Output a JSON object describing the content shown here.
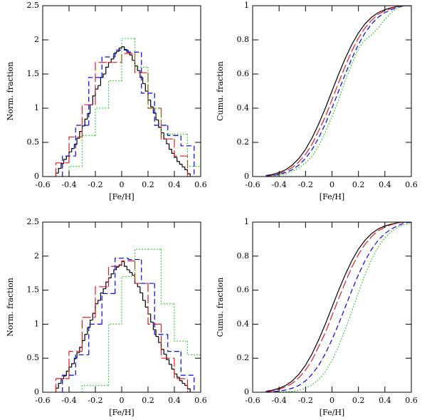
{
  "chart_data": [
    {
      "type": "histogram",
      "xlabel": "[Fe/H]",
      "ylabel": "Norm. fraction",
      "xlim": [
        -0.6,
        0.6
      ],
      "xticks": [
        -0.6,
        -0.4,
        -0.2,
        0,
        0.2,
        0.4,
        0.6
      ],
      "ylim": [
        0,
        2.5
      ],
      "yticks": [
        0,
        0.5,
        1,
        1.5,
        2,
        2.5
      ],
      "series": [
        {
          "color": "#000000",
          "style": "solid",
          "bins": [
            -0.5,
            -0.48,
            -0.46,
            -0.44,
            -0.42,
            -0.4,
            -0.38,
            -0.36,
            -0.34,
            -0.32,
            -0.3,
            -0.28,
            -0.26,
            -0.24,
            -0.22,
            -0.2,
            -0.18,
            -0.16,
            -0.14,
            -0.12,
            -0.1,
            -0.08,
            -0.06,
            -0.04,
            -0.02,
            0,
            0.02,
            0.04,
            0.06,
            0.08,
            0.1,
            0.12,
            0.14,
            0.16,
            0.18,
            0.2,
            0.22,
            0.24,
            0.26,
            0.28,
            0.3,
            0.32,
            0.34,
            0.36,
            0.38,
            0.4,
            0.42,
            0.44,
            0.46,
            0.48,
            0.5,
            0.52
          ],
          "values": [
            0.05,
            0.12,
            0.19,
            0.25,
            0.3,
            0.36,
            0.41,
            0.47,
            0.56,
            0.66,
            0.74,
            0.84,
            0.92,
            1.05,
            1.18,
            1.28,
            1.33,
            1.45,
            1.5,
            1.6,
            1.67,
            1.72,
            1.8,
            1.83,
            1.88,
            1.9,
            1.86,
            1.82,
            1.78,
            1.7,
            1.62,
            1.55,
            1.45,
            1.36,
            1.25,
            1.12,
            1.02,
            0.93,
            0.83,
            0.72,
            0.64,
            0.55,
            0.48,
            0.4,
            0.34,
            0.28,
            0.22,
            0.18,
            0.14,
            0.1,
            0.04
          ]
        },
        {
          "color": "#e41a1c",
          "style": "longdash",
          "bins": [
            -0.5,
            -0.4,
            -0.3,
            -0.2,
            -0.1,
            0,
            0.1,
            0.2,
            0.3,
            0.4,
            0.5
          ],
          "values": [
            0.2,
            0.58,
            1.05,
            1.67,
            1.67,
            1.8,
            1.52,
            1.0,
            0.55,
            0.3
          ]
        },
        {
          "color": "#0000ff",
          "style": "dashed",
          "bins": [
            -0.45,
            -0.35,
            -0.25,
            -0.15,
            -0.05,
            0.05,
            0.15,
            0.25,
            0.35,
            0.45,
            0.55
          ],
          "values": [
            0.3,
            0.75,
            1.45,
            1.75,
            1.85,
            1.82,
            1.22,
            0.75,
            0.6,
            0.45
          ]
        },
        {
          "color": "#00cc00",
          "style": "dotted",
          "bins": [
            -0.4,
            -0.3,
            -0.2,
            -0.1,
            0,
            0.1,
            0.2,
            0.3,
            0.4,
            0.5,
            0.6
          ],
          "values": [
            0.15,
            0.6,
            1.0,
            1.4,
            2.02,
            1.6,
            1.0,
            0.62,
            0.62,
            0.15
          ]
        }
      ]
    },
    {
      "type": "line",
      "xlabel": "[Fe/H]",
      "ylabel": "Cumu. fraction",
      "xlim": [
        -0.6,
        0.6
      ],
      "xticks": [
        -0.6,
        -0.4,
        -0.2,
        0,
        0.2,
        0.4,
        0.6
      ],
      "ylim": [
        0,
        1
      ],
      "yticks": [
        0,
        0.2,
        0.4,
        0.6,
        0.8,
        1
      ],
      "x": [
        -0.5,
        -0.45,
        -0.4,
        -0.35,
        -0.3,
        -0.25,
        -0.2,
        -0.15,
        -0.1,
        -0.05,
        0,
        0.05,
        0.1,
        0.15,
        0.2,
        0.25,
        0.3,
        0.35,
        0.4,
        0.45,
        0.5,
        0.55,
        0.6
      ],
      "series": [
        {
          "color": "#000000",
          "style": "solid",
          "values": [
            0.006,
            0.012,
            0.023,
            0.04,
            0.067,
            0.106,
            0.159,
            0.227,
            0.309,
            0.401,
            0.5,
            0.599,
            0.691,
            0.773,
            0.841,
            0.894,
            0.933,
            0.96,
            0.977,
            0.988,
            0.997,
            1,
            1
          ]
        },
        {
          "color": "#e41a1c",
          "style": "longdash",
          "values": [
            0.003,
            0.008,
            0.017,
            0.031,
            0.053,
            0.086,
            0.13,
            0.19,
            0.27,
            0.35,
            0.45,
            0.55,
            0.645,
            0.735,
            0.81,
            0.87,
            0.915,
            0.95,
            0.97,
            0.985,
            0.995,
            1,
            1
          ]
        },
        {
          "color": "#0000ff",
          "style": "dashed",
          "values": [
            0.002,
            0.006,
            0.012,
            0.023,
            0.04,
            0.067,
            0.106,
            0.159,
            0.227,
            0.309,
            0.401,
            0.5,
            0.599,
            0.691,
            0.773,
            0.841,
            0.894,
            0.933,
            0.96,
            0.977,
            0.99,
            1,
            1
          ]
        },
        {
          "color": "#00cc00",
          "style": "dotted",
          "values": [
            0,
            0.003,
            0.008,
            0.015,
            0.03,
            0.05,
            0.08,
            0.12,
            0.18,
            0.26,
            0.35,
            0.45,
            0.56,
            0.66,
            0.75,
            0.8,
            0.83,
            0.87,
            0.92,
            0.96,
            0.99,
            1,
            1
          ]
        }
      ]
    },
    {
      "type": "histogram",
      "xlabel": "[Fe/H]",
      "ylabel": "Norm. fraction",
      "xlim": [
        -0.6,
        0.6
      ],
      "xticks": [
        -0.6,
        -0.4,
        -0.2,
        0,
        0.2,
        0.4,
        0.6
      ],
      "ylim": [
        0,
        2.5
      ],
      "yticks": [
        0,
        0.5,
        1,
        1.5,
        2,
        2.5
      ],
      "series": [
        {
          "color": "#000000",
          "style": "solid",
          "bins": [
            -0.5,
            -0.48,
            -0.46,
            -0.44,
            -0.42,
            -0.4,
            -0.38,
            -0.36,
            -0.34,
            -0.32,
            -0.3,
            -0.28,
            -0.26,
            -0.24,
            -0.22,
            -0.2,
            -0.18,
            -0.16,
            -0.14,
            -0.12,
            -0.1,
            -0.08,
            -0.06,
            -0.04,
            -0.02,
            0,
            0.02,
            0.04,
            0.06,
            0.08,
            0.1,
            0.12,
            0.14,
            0.16,
            0.18,
            0.2,
            0.22,
            0.24,
            0.26,
            0.28,
            0.3,
            0.32,
            0.34,
            0.36,
            0.38,
            0.4,
            0.42,
            0.44,
            0.46,
            0.48,
            0.5,
            0.52
          ],
          "values": [
            0.06,
            0.13,
            0.2,
            0.24,
            0.31,
            0.37,
            0.42,
            0.5,
            0.58,
            0.66,
            0.76,
            0.85,
            0.95,
            1.06,
            1.16,
            1.3,
            1.35,
            1.46,
            1.52,
            1.62,
            1.68,
            1.74,
            1.8,
            1.84,
            1.87,
            1.92,
            1.85,
            1.8,
            1.76,
            1.72,
            1.6,
            1.55,
            1.46,
            1.35,
            1.25,
            1.15,
            1.03,
            0.92,
            0.82,
            0.73,
            0.63,
            0.56,
            0.48,
            0.41,
            0.34,
            0.27,
            0.22,
            0.17,
            0.13,
            0.1,
            0.05
          ]
        },
        {
          "color": "#e41a1c",
          "style": "longdash",
          "bins": [
            -0.5,
            -0.4,
            -0.3,
            -0.2,
            -0.1,
            0,
            0.1,
            0.2,
            0.3,
            0.4,
            0.5
          ],
          "values": [
            0.2,
            0.6,
            1.1,
            1.55,
            1.85,
            1.93,
            1.6,
            1.0,
            0.5,
            0.2
          ]
        },
        {
          "color": "#0000ff",
          "style": "dashed",
          "bins": [
            -0.45,
            -0.35,
            -0.25,
            -0.15,
            -0.05,
            0.05,
            0.15,
            0.25,
            0.35,
            0.45,
            0.55
          ],
          "values": [
            0.25,
            0.55,
            1.0,
            1.45,
            1.97,
            1.95,
            1.6,
            0.85,
            0.6,
            0.25
          ]
        },
        {
          "color": "#00cc00",
          "style": "dotted",
          "bins": [
            -0.3,
            -0.2,
            -0.1,
            0,
            0.1,
            0.2,
            0.3,
            0.4,
            0.5,
            0.6
          ],
          "values": [
            0.1,
            0.1,
            1.0,
            1.7,
            2.1,
            2.1,
            1.3,
            0.75,
            0.55
          ]
        }
      ]
    },
    {
      "type": "line",
      "xlabel": "[Fe/H]",
      "ylabel": "Cumu. fraction",
      "xlim": [
        -0.6,
        0.6
      ],
      "xticks": [
        -0.6,
        -0.4,
        -0.2,
        0,
        0.2,
        0.4,
        0.6
      ],
      "ylim": [
        0,
        1
      ],
      "yticks": [
        0,
        0.2,
        0.4,
        0.6,
        0.8,
        1
      ],
      "x": [
        -0.5,
        -0.45,
        -0.4,
        -0.35,
        -0.3,
        -0.25,
        -0.2,
        -0.15,
        -0.1,
        -0.05,
        0,
        0.05,
        0.1,
        0.15,
        0.2,
        0.25,
        0.3,
        0.35,
        0.4,
        0.45,
        0.5,
        0.55,
        0.6
      ],
      "series": [
        {
          "color": "#000000",
          "style": "solid",
          "values": [
            0.006,
            0.012,
            0.023,
            0.04,
            0.067,
            0.106,
            0.159,
            0.227,
            0.309,
            0.401,
            0.5,
            0.599,
            0.691,
            0.773,
            0.841,
            0.894,
            0.933,
            0.96,
            0.977,
            0.988,
            0.997,
            1,
            1
          ]
        },
        {
          "color": "#e41a1c",
          "style": "longdash",
          "values": [
            0.003,
            0.008,
            0.017,
            0.031,
            0.053,
            0.086,
            0.13,
            0.19,
            0.27,
            0.35,
            0.45,
            0.55,
            0.645,
            0.735,
            0.81,
            0.87,
            0.915,
            0.95,
            0.97,
            0.985,
            0.995,
            1,
            1
          ]
        },
        {
          "color": "#0000ff",
          "style": "dashed",
          "values": [
            0.001,
            0.003,
            0.007,
            0.013,
            0.024,
            0.04,
            0.067,
            0.106,
            0.159,
            0.227,
            0.309,
            0.401,
            0.5,
            0.599,
            0.691,
            0.773,
            0.841,
            0.894,
            0.933,
            0.96,
            0.98,
            0.995,
            1
          ]
        },
        {
          "color": "#00cc00",
          "style": "dotted",
          "values": [
            0,
            0,
            0.001,
            0.003,
            0.005,
            0.011,
            0.023,
            0.043,
            0.075,
            0.121,
            0.187,
            0.271,
            0.37,
            0.476,
            0.587,
            0.691,
            0.782,
            0.855,
            0.908,
            0.946,
            0.971,
            0.985,
            0.995
          ]
        }
      ]
    }
  ]
}
